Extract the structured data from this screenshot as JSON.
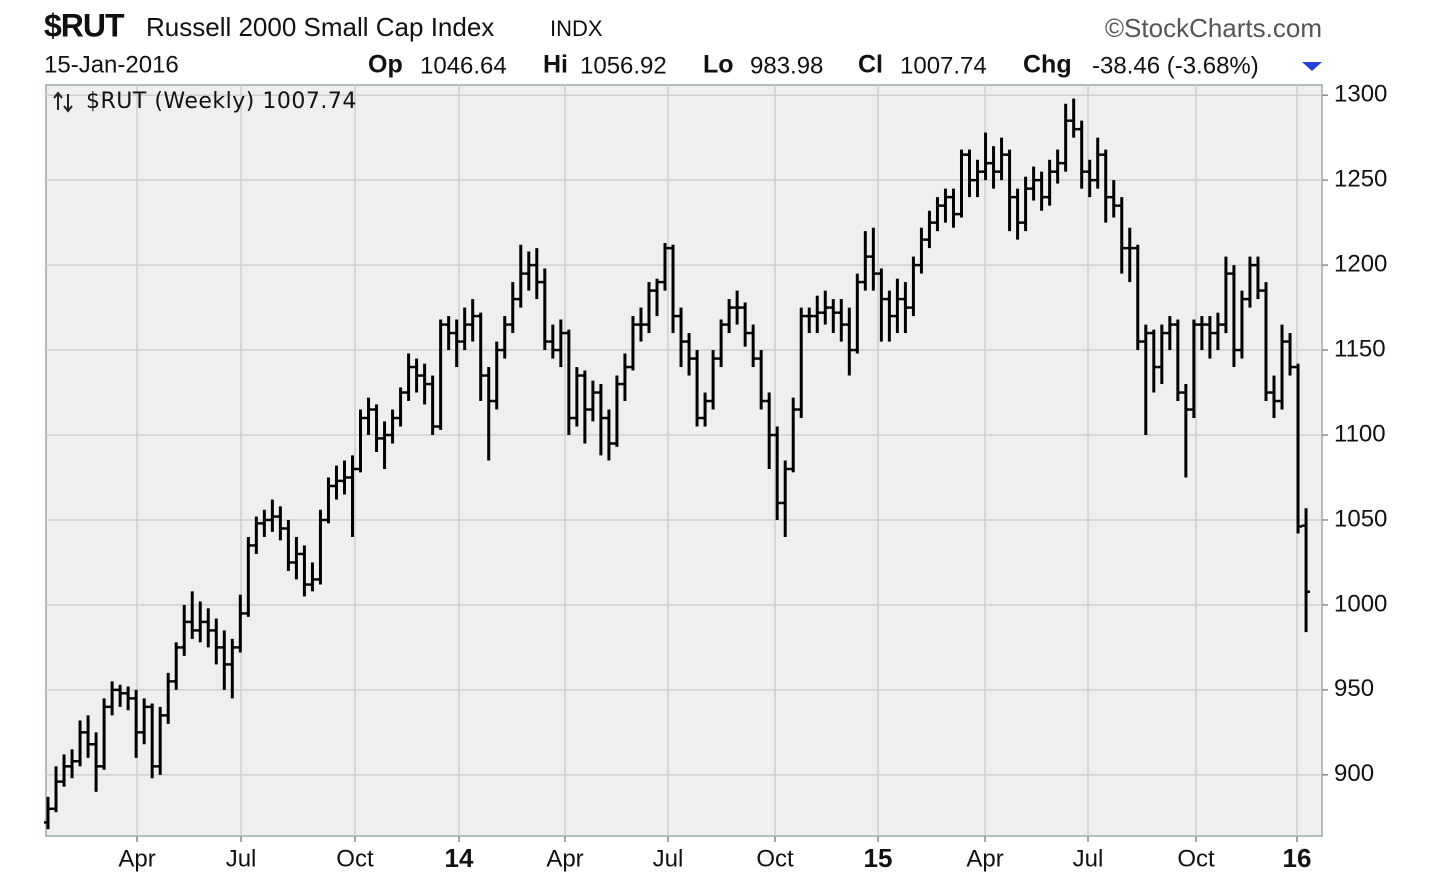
{
  "header": {
    "symbol": "$RUT",
    "name": "Russell 2000 Small Cap Index",
    "exchange": "INDX",
    "credit": "©StockCharts.com",
    "date": "15-Jan-2016",
    "op_label": "Op",
    "op": "1046.64",
    "hi_label": "Hi",
    "hi": "1056.92",
    "lo_label": "Lo",
    "lo": "983.98",
    "cl_label": "Cl",
    "cl": "1007.74",
    "chg_label": "Chg",
    "chg": "-38.46 (-3.68%)"
  },
  "chart_data": {
    "type": "ohlc",
    "legend": "$RUT (Weekly) 1007.74",
    "color": "#000000",
    "grid": true,
    "ylim": [
      864,
      1306
    ],
    "yticks": [
      900,
      950,
      1000,
      1050,
      1100,
      1150,
      1200,
      1250,
      1300
    ],
    "xlim": [
      -0.25,
      158.99
    ],
    "xticks": [
      {
        "value": 11.11,
        "label": "Apr"
      },
      {
        "value": 24.09,
        "label": "Jul"
      },
      {
        "value": 38.31,
        "label": "Oct"
      },
      {
        "value": 51.29,
        "label": "14"
      },
      {
        "value": 64.52,
        "label": "Apr"
      },
      {
        "value": 77.37,
        "label": "Jul"
      },
      {
        "value": 90.73,
        "label": "Oct"
      },
      {
        "value": 103.58,
        "label": "15"
      },
      {
        "value": 116.94,
        "label": "Apr"
      },
      {
        "value": 129.79,
        "label": "Jul"
      },
      {
        "value": 143.27,
        "label": "Oct"
      },
      {
        "value": 155.87,
        "label": "16"
      }
    ],
    "ohlc": [
      [
        872,
        887,
        868,
        880
      ],
      [
        880,
        905,
        878,
        896
      ],
      [
        896,
        912,
        893,
        905
      ],
      [
        905,
        915,
        898,
        908
      ],
      [
        908,
        932,
        905,
        925
      ],
      [
        925,
        935,
        910,
        918
      ],
      [
        918,
        925,
        890,
        905
      ],
      [
        905,
        945,
        903,
        940
      ],
      [
        940,
        955,
        935,
        950
      ],
      [
        950,
        953,
        940,
        948
      ],
      [
        948,
        952,
        938,
        945
      ],
      [
        945,
        950,
        910,
        925
      ],
      [
        925,
        945,
        918,
        940
      ],
      [
        940,
        942,
        898,
        905
      ],
      [
        905,
        940,
        900,
        935
      ],
      [
        935,
        960,
        930,
        955
      ],
      [
        955,
        978,
        950,
        975
      ],
      [
        975,
        1000,
        970,
        990
      ],
      [
        990,
        1008,
        980,
        985
      ],
      [
        985,
        1002,
        978,
        990
      ],
      [
        990,
        998,
        975,
        985
      ],
      [
        985,
        992,
        965,
        975
      ],
      [
        975,
        985,
        950,
        965
      ],
      [
        965,
        980,
        945,
        975
      ],
      [
        975,
        1006,
        972,
        995
      ],
      [
        995,
        1040,
        993,
        1035
      ],
      [
        1035,
        1052,
        1030,
        1048
      ],
      [
        1048,
        1056,
        1040,
        1050
      ],
      [
        1050,
        1062,
        1043,
        1052
      ],
      [
        1052,
        1058,
        1038,
        1045
      ],
      [
        1045,
        1050,
        1020,
        1025
      ],
      [
        1025,
        1040,
        1015,
        1030
      ],
      [
        1030,
        1035,
        1005,
        1012
      ],
      [
        1012,
        1025,
        1008,
        1015
      ],
      [
        1015,
        1056,
        1012,
        1050
      ],
      [
        1050,
        1075,
        1048,
        1070
      ],
      [
        1070,
        1082,
        1062,
        1073
      ],
      [
        1073,
        1085,
        1065,
        1075
      ],
      [
        1075,
        1088,
        1040,
        1080
      ],
      [
        1080,
        1115,
        1078,
        1110
      ],
      [
        1110,
        1122,
        1100,
        1115
      ],
      [
        1115,
        1118,
        1090,
        1098
      ],
      [
        1098,
        1108,
        1080,
        1100
      ],
      [
        1100,
        1115,
        1095,
        1110
      ],
      [
        1110,
        1128,
        1105,
        1125
      ],
      [
        1125,
        1148,
        1120,
        1140
      ],
      [
        1140,
        1145,
        1125,
        1135
      ],
      [
        1135,
        1142,
        1118,
        1130
      ],
      [
        1130,
        1135,
        1100,
        1105
      ],
      [
        1105,
        1168,
        1103,
        1165
      ],
      [
        1165,
        1170,
        1150,
        1160
      ],
      [
        1160,
        1168,
        1140,
        1155
      ],
      [
        1155,
        1175,
        1150,
        1165
      ],
      [
        1165,
        1180,
        1155,
        1170
      ],
      [
        1170,
        1172,
        1120,
        1135
      ],
      [
        1135,
        1140,
        1085,
        1120
      ],
      [
        1120,
        1155,
        1115,
        1150
      ],
      [
        1150,
        1170,
        1145,
        1165
      ],
      [
        1165,
        1190,
        1160,
        1180
      ],
      [
        1180,
        1212,
        1175,
        1195
      ],
      [
        1195,
        1208,
        1185,
        1200
      ],
      [
        1200,
        1210,
        1180,
        1190
      ],
      [
        1190,
        1198,
        1150,
        1155
      ],
      [
        1155,
        1165,
        1145,
        1150
      ],
      [
        1150,
        1168,
        1140,
        1160
      ],
      [
        1160,
        1162,
        1100,
        1110
      ],
      [
        1110,
        1140,
        1105,
        1135
      ],
      [
        1135,
        1138,
        1095,
        1115
      ],
      [
        1115,
        1132,
        1108,
        1125
      ],
      [
        1125,
        1130,
        1088,
        1110
      ],
      [
        1110,
        1115,
        1085,
        1095
      ],
      [
        1095,
        1135,
        1093,
        1130
      ],
      [
        1130,
        1148,
        1120,
        1140
      ],
      [
        1140,
        1170,
        1138,
        1165
      ],
      [
        1165,
        1175,
        1155,
        1165
      ],
      [
        1165,
        1190,
        1160,
        1185
      ],
      [
        1185,
        1192,
        1170,
        1190
      ],
      [
        1190,
        1213,
        1185,
        1210
      ],
      [
        1210,
        1212,
        1160,
        1170
      ],
      [
        1170,
        1175,
        1140,
        1155
      ],
      [
        1155,
        1160,
        1135,
        1145
      ],
      [
        1145,
        1150,
        1105,
        1110
      ],
      [
        1110,
        1125,
        1105,
        1120
      ],
      [
        1120,
        1150,
        1115,
        1145
      ],
      [
        1145,
        1168,
        1140,
        1165
      ],
      [
        1165,
        1180,
        1160,
        1175
      ],
      [
        1175,
        1185,
        1165,
        1175
      ],
      [
        1175,
        1178,
        1152,
        1160
      ],
      [
        1160,
        1165,
        1140,
        1145
      ],
      [
        1145,
        1150,
        1115,
        1120
      ],
      [
        1120,
        1125,
        1080,
        1100
      ],
      [
        1100,
        1105,
        1050,
        1060
      ],
      [
        1060,
        1085,
        1040,
        1080
      ],
      [
        1080,
        1122,
        1078,
        1115
      ],
      [
        1115,
        1175,
        1110,
        1170
      ],
      [
        1170,
        1175,
        1160,
        1170
      ],
      [
        1170,
        1182,
        1160,
        1172
      ],
      [
        1172,
        1185,
        1165,
        1175
      ],
      [
        1175,
        1180,
        1160,
        1172
      ],
      [
        1172,
        1180,
        1155,
        1165
      ],
      [
        1165,
        1175,
        1135,
        1150
      ],
      [
        1150,
        1195,
        1148,
        1190
      ],
      [
        1190,
        1220,
        1185,
        1205
      ],
      [
        1205,
        1222,
        1185,
        1195
      ],
      [
        1195,
        1198,
        1155,
        1180
      ],
      [
        1180,
        1185,
        1155,
        1170
      ],
      [
        1170,
        1192,
        1160,
        1180
      ],
      [
        1180,
        1190,
        1160,
        1175
      ],
      [
        1175,
        1205,
        1170,
        1200
      ],
      [
        1200,
        1222,
        1195,
        1215
      ],
      [
        1215,
        1232,
        1210,
        1225
      ],
      [
        1225,
        1240,
        1220,
        1235
      ],
      [
        1235,
        1245,
        1225,
        1240
      ],
      [
        1240,
        1245,
        1222,
        1230
      ],
      [
        1230,
        1268,
        1228,
        1265
      ],
      [
        1265,
        1268,
        1240,
        1250
      ],
      [
        1250,
        1262,
        1240,
        1255
      ],
      [
        1255,
        1278,
        1250,
        1260
      ],
      [
        1260,
        1270,
        1245,
        1255
      ],
      [
        1255,
        1275,
        1250,
        1265
      ],
      [
        1265,
        1268,
        1220,
        1240
      ],
      [
        1240,
        1245,
        1215,
        1225
      ],
      [
        1225,
        1252,
        1220,
        1245
      ],
      [
        1245,
        1258,
        1238,
        1250
      ],
      [
        1250,
        1255,
        1232,
        1240
      ],
      [
        1240,
        1262,
        1235,
        1255
      ],
      [
        1255,
        1268,
        1248,
        1260
      ],
      [
        1260,
        1295,
        1255,
        1285
      ],
      [
        1285,
        1298,
        1275,
        1280
      ],
      [
        1280,
        1285,
        1245,
        1255
      ],
      [
        1255,
        1262,
        1240,
        1250
      ],
      [
        1250,
        1275,
        1245,
        1265
      ],
      [
        1265,
        1268,
        1225,
        1240
      ],
      [
        1240,
        1250,
        1228,
        1235
      ],
      [
        1235,
        1240,
        1195,
        1210
      ],
      [
        1210,
        1222,
        1190,
        1210
      ],
      [
        1210,
        1212,
        1150,
        1155
      ],
      [
        1155,
        1165,
        1100,
        1160
      ],
      [
        1160,
        1162,
        1125,
        1140
      ],
      [
        1140,
        1165,
        1130,
        1160
      ],
      [
        1160,
        1170,
        1150,
        1165
      ],
      [
        1165,
        1168,
        1120,
        1125
      ],
      [
        1125,
        1130,
        1075,
        1115
      ],
      [
        1115,
        1168,
        1110,
        1165
      ],
      [
        1165,
        1170,
        1150,
        1165
      ],
      [
        1165,
        1170,
        1145,
        1160
      ],
      [
        1160,
        1172,
        1150,
        1165
      ],
      [
        1165,
        1205,
        1160,
        1195
      ],
      [
        1195,
        1200,
        1140,
        1150
      ],
      [
        1150,
        1185,
        1145,
        1180
      ],
      [
        1180,
        1205,
        1175,
        1200
      ],
      [
        1200,
        1205,
        1180,
        1185
      ],
      [
        1185,
        1190,
        1120,
        1125
      ],
      [
        1125,
        1135,
        1110,
        1120
      ],
      [
        1120,
        1165,
        1115,
        1155
      ],
      [
        1155,
        1160,
        1135,
        1140
      ],
      [
        1140,
        1142,
        1042,
        1046.2
      ],
      [
        1046.64,
        1056.92,
        983.98,
        1007.74
      ]
    ]
  }
}
